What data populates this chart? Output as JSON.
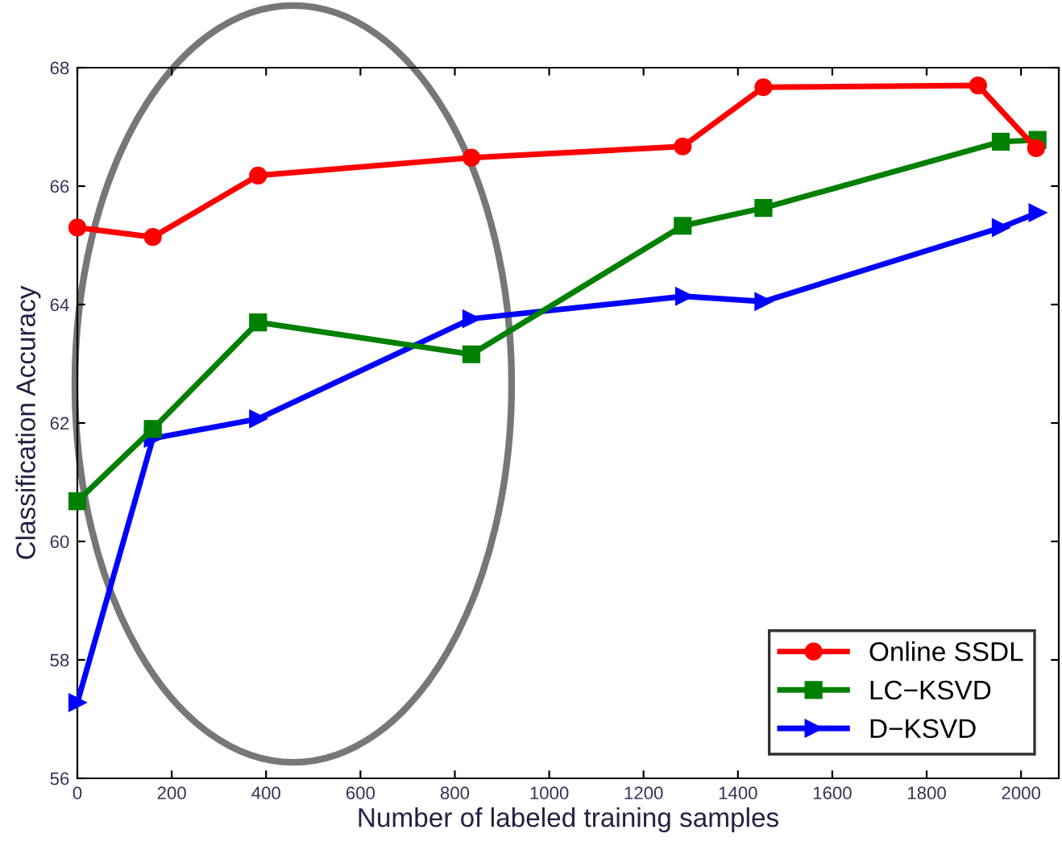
{
  "chart_data": {
    "type": "line",
    "xlabel": "Number of labeled training samples",
    "ylabel": "Classification Accuracy",
    "xlim": [
      0,
      2080
    ],
    "ylim": [
      56,
      68
    ],
    "xticks": [
      0,
      200,
      400,
      600,
      800,
      1000,
      1200,
      1400,
      1600,
      1800,
      2000
    ],
    "yticks": [
      56,
      58,
      60,
      62,
      64,
      66,
      68
    ],
    "grid": false,
    "legend": "bottom right",
    "series": [
      {
        "name": "Online SSDL",
        "color": "#ff0000",
        "marker": "circle",
        "x": [
          0,
          160,
          383,
          835,
          1283,
          1454,
          1909,
          2032
        ],
        "values": [
          65.3,
          65.14,
          66.18,
          66.48,
          66.67,
          67.67,
          67.7,
          66.64
        ]
      },
      {
        "name": "LC−KSVD",
        "color": "#008000",
        "marker": "square",
        "x": [
          0,
          160,
          383,
          835,
          1283,
          1454,
          1957,
          2035
        ],
        "values": [
          60.68,
          61.9,
          63.7,
          63.16,
          65.33,
          65.63,
          66.75,
          66.78
        ]
      },
      {
        "name": "D−KSVD",
        "color": "#0000ff",
        "marker": "triangle",
        "x": [
          0,
          160,
          383,
          835,
          1286,
          1454,
          1957,
          2035
        ],
        "values": [
          57.28,
          61.74,
          62.07,
          63.76,
          64.14,
          64.05,
          65.3,
          65.55
        ]
      }
    ]
  }
}
